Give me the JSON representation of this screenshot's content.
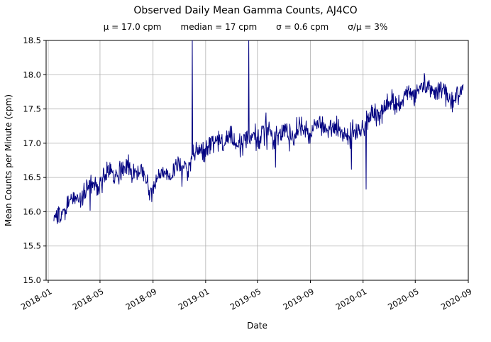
{
  "chart_data": {
    "type": "line",
    "title": "Observed Daily Mean Gamma Counts, AJ4CO",
    "stats": {
      "mu": "μ = 17.0 cpm",
      "median": "median = 17 cpm",
      "sigma": "σ = 0.6 cpm",
      "sigma_over_mu": "σ/μ = 3%"
    },
    "xlabel": "Date",
    "ylabel": "Mean Counts per Minute (cpm)",
    "x_start": "2018-01-14",
    "x_end": "2020-08-20",
    "ylim": [
      15.0,
      18.5
    ],
    "yticks": [
      15.0,
      15.5,
      16.0,
      16.5,
      17.0,
      17.5,
      18.0,
      18.5
    ],
    "xtick_labels": [
      "2018-01",
      "2018-05",
      "2018-09",
      "2019-01",
      "2019-05",
      "2019-09",
      "2020-01",
      "2020-05",
      "2020-09"
    ],
    "grid": true,
    "legend": false,
    "line_color": "#000080",
    "grid_color": "#b0b0b0",
    "spike_value": 19.0,
    "offscale_spikes": [
      "2018-12-01",
      "2019-04-11"
    ],
    "dips": [
      {
        "date": "2018-04-08",
        "value": 16.02
      },
      {
        "date": "2019-06-12",
        "value": 16.65
      },
      {
        "date": "2019-12-05",
        "value": 16.62
      },
      {
        "date": "2020-01-08",
        "value": 16.33
      }
    ],
    "noise_sd": 0.08,
    "trend_anchors": [
      {
        "date": "2018-01-14",
        "value": 15.85
      },
      {
        "date": "2018-01-25",
        "value": 15.9
      },
      {
        "date": "2018-02-10",
        "value": 16.05
      },
      {
        "date": "2018-03-01",
        "value": 16.15
      },
      {
        "date": "2018-03-25",
        "value": 16.3
      },
      {
        "date": "2018-04-20",
        "value": 16.4
      },
      {
        "date": "2018-05-15",
        "value": 16.5
      },
      {
        "date": "2018-06-10",
        "value": 16.55
      },
      {
        "date": "2018-07-05",
        "value": 16.6
      },
      {
        "date": "2018-07-25",
        "value": 16.68
      },
      {
        "date": "2018-08-10",
        "value": 16.5
      },
      {
        "date": "2018-08-25",
        "value": 16.38
      },
      {
        "date": "2018-09-10",
        "value": 16.42
      },
      {
        "date": "2018-09-25",
        "value": 16.55
      },
      {
        "date": "2018-10-15",
        "value": 16.55
      },
      {
        "date": "2018-11-05",
        "value": 16.62
      },
      {
        "date": "2018-11-25",
        "value": 16.75
      },
      {
        "date": "2018-12-15",
        "value": 16.88
      },
      {
        "date": "2019-01-05",
        "value": 16.95
      },
      {
        "date": "2019-02-01",
        "value": 17.0
      },
      {
        "date": "2019-03-01",
        "value": 17.05
      },
      {
        "date": "2019-04-01",
        "value": 17.08
      },
      {
        "date": "2019-05-01",
        "value": 17.15
      },
      {
        "date": "2019-05-20",
        "value": 17.12
      },
      {
        "date": "2019-06-10",
        "value": 17.1
      },
      {
        "date": "2019-07-01",
        "value": 17.15
      },
      {
        "date": "2019-08-01",
        "value": 17.22
      },
      {
        "date": "2019-09-01",
        "value": 17.18
      },
      {
        "date": "2019-10-01",
        "value": 17.25
      },
      {
        "date": "2019-11-01",
        "value": 17.2
      },
      {
        "date": "2019-12-01",
        "value": 17.15
      },
      {
        "date": "2020-01-01",
        "value": 17.25
      },
      {
        "date": "2020-02-01",
        "value": 17.42
      },
      {
        "date": "2020-03-01",
        "value": 17.58
      },
      {
        "date": "2020-04-01",
        "value": 17.68
      },
      {
        "date": "2020-05-01",
        "value": 17.75
      },
      {
        "date": "2020-06-01",
        "value": 17.8
      },
      {
        "date": "2020-07-01",
        "value": 17.75
      },
      {
        "date": "2020-08-01",
        "value": 17.72
      },
      {
        "date": "2020-08-20",
        "value": 17.7
      }
    ]
  }
}
